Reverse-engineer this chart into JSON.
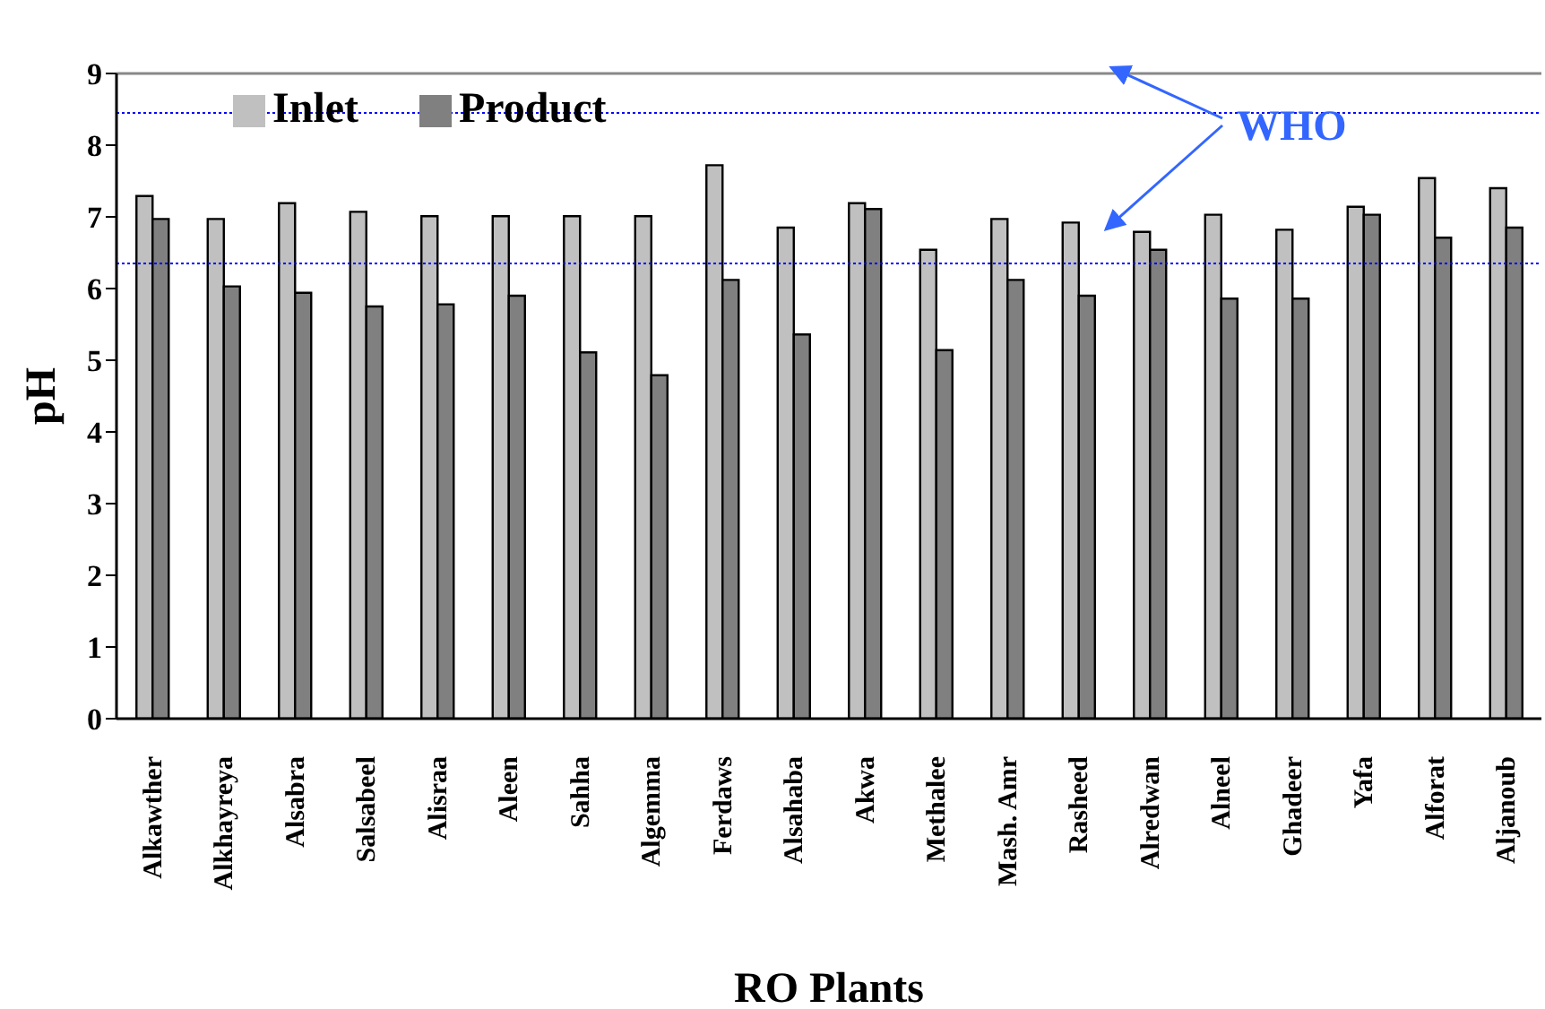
{
  "chart_data": {
    "type": "bar",
    "xlabel": "RO Plants",
    "ylabel": "pH",
    "categories": [
      "Alkawther",
      "Alkhayreya",
      "Alsabra",
      "Salsabeel",
      "Alisraa",
      "Aleen",
      "Sahha",
      "Algemma",
      "Ferdaws",
      "Alsahaba",
      "Akwa",
      "Methalee",
      "Mash. Amr",
      "Rasheed",
      "Alredwan",
      "Alneel",
      "Ghadeer",
      "Yafa",
      "Alforat",
      "Aljanoub"
    ],
    "series": [
      {
        "name": "Inlet",
        "color": "#c0c0c0",
        "values": [
          7.29,
          6.97,
          7.19,
          7.07,
          7.01,
          7.01,
          7.01,
          7.01,
          7.72,
          6.85,
          7.19,
          6.54,
          6.97,
          6.92,
          6.79,
          7.03,
          6.82,
          7.14,
          7.54,
          7.4
        ]
      },
      {
        "name": "Product",
        "color": "#808080",
        "values": [
          6.97,
          6.03,
          5.94,
          5.75,
          5.78,
          5.9,
          5.11,
          4.79,
          6.12,
          5.36,
          7.11,
          5.14,
          6.12,
          5.9,
          6.54,
          5.86,
          5.86,
          7.03,
          6.71,
          6.85
        ]
      }
    ],
    "ylim": [
      0,
      9
    ],
    "yticks": [
      0,
      1,
      2,
      3,
      4,
      5,
      6,
      7,
      8,
      9
    ],
    "grid": false,
    "legend": "top left",
    "ref_lines": [
      {
        "axis": "y",
        "value": 8.45,
        "color": "#0000ff",
        "line_style": "dotted"
      },
      {
        "axis": "y",
        "value": 6.35,
        "color": "#0000ff",
        "line_style": "dotted"
      }
    ],
    "annotations": [
      "WHO"
    ]
  }
}
